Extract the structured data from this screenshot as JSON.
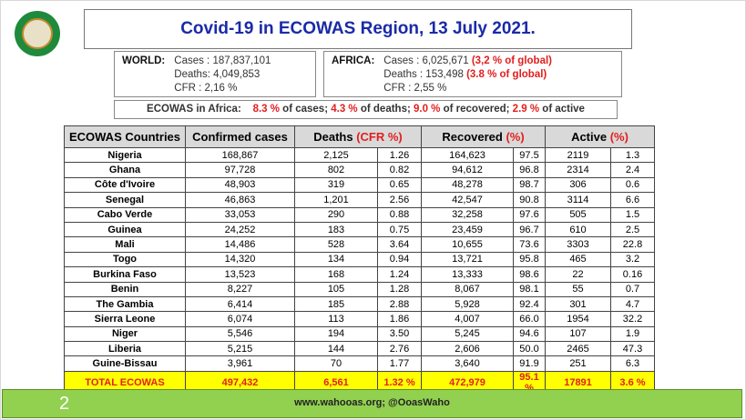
{
  "title": "Covid-19 in ECOWAS Region, 13 July 2021.",
  "logo": {
    "top": "CEDEAO",
    "bottom": "ECOWAS"
  },
  "world": {
    "label": "WORLD:",
    "cases": "Cases : 187,837,101",
    "deaths": "Deaths: 4,049,853",
    "cfr": "CFR : 2,16 %"
  },
  "africa": {
    "label": "AFRICA:",
    "cases": "Cases : 6,025,671 ",
    "cases_pct": "(3,2 % of global)",
    "deaths": "Deaths : 153,498 ",
    "deaths_pct": "(3.8 % of global)",
    "cfr": "CFR : 2,55 %"
  },
  "ecowas_in_africa": {
    "label": "ECOWAS in Africa:",
    "cases_pct": "8.3 %",
    "cases_txt": " of cases; ",
    "deaths_pct": "4.3 %",
    "deaths_txt": " of deaths; ",
    "rec_pct": "9.0 %",
    "rec_txt": " of recovered; ",
    "act_pct": "2.9 %",
    "act_txt": " of active"
  },
  "table": {
    "headers": {
      "country": "ECOWAS Countries",
      "confirmed": "Confirmed cases",
      "deaths": "Deaths ",
      "cfr": "(CFR %)",
      "recovered": "Recovered ",
      "rec_pct": "(%)",
      "active": "Active ",
      "act_pct": "(%)"
    },
    "rows": [
      [
        "Nigeria",
        "168,867",
        "2,125",
        "1.26",
        "164,623",
        "97.5",
        "2119",
        "1.3"
      ],
      [
        "Ghana",
        "97,728",
        "802",
        "0.82",
        "94,612",
        "96.8",
        "2314",
        "2.4"
      ],
      [
        "Côte d'Ivoire",
        "48,903",
        "319",
        "0.65",
        "48,278",
        "98.7",
        "306",
        "0.6"
      ],
      [
        "Senegal",
        "46,863",
        "1,201",
        "2.56",
        "42,547",
        "90.8",
        "3114",
        "6.6"
      ],
      [
        "Cabo Verde",
        "33,053",
        "290",
        "0.88",
        "32,258",
        "97.6",
        "505",
        "1.5"
      ],
      [
        "Guinea",
        "24,252",
        "183",
        "0.75",
        "23,459",
        "96.7",
        "610",
        "2.5"
      ],
      [
        "Mali",
        "14,486",
        "528",
        "3.64",
        "10,655",
        "73.6",
        "3303",
        "22.8"
      ],
      [
        "Togo",
        "14,320",
        "134",
        "0.94",
        "13,721",
        "95.8",
        "465",
        "3.2"
      ],
      [
        "Burkina Faso",
        "13,523",
        "168",
        "1.24",
        "13,333",
        "98.6",
        "22",
        "0.16"
      ],
      [
        "Benin",
        "8,227",
        "105",
        "1.28",
        "8,067",
        "98.1",
        "55",
        "0.7"
      ],
      [
        "The Gambia",
        "6,414",
        "185",
        "2.88",
        "5,928",
        "92.4",
        "301",
        "4.7"
      ],
      [
        "Sierra Leone",
        "6,074",
        "113",
        "1.86",
        "4,007",
        "66.0",
        "1954",
        "32.2"
      ],
      [
        "Niger",
        "5,546",
        "194",
        "3.50",
        "5,245",
        "94.6",
        "107",
        "1.9"
      ],
      [
        "Liberia",
        "5,215",
        "144",
        "2.76",
        "2,606",
        "50.0",
        "2465",
        "47.3"
      ],
      [
        "Guine-Bissau",
        "3,961",
        "70",
        "1.77",
        "3,640",
        "91.9",
        "251",
        "6.3"
      ]
    ],
    "total": [
      "TOTAL ECOWAS",
      "497,432",
      "6,561",
      "1.32 %",
      "472,979",
      "95.1 %",
      "17891",
      "3.6 %"
    ]
  },
  "footer": {
    "page": "2",
    "links": "www.wahooas.org; @OoasWaho"
  }
}
